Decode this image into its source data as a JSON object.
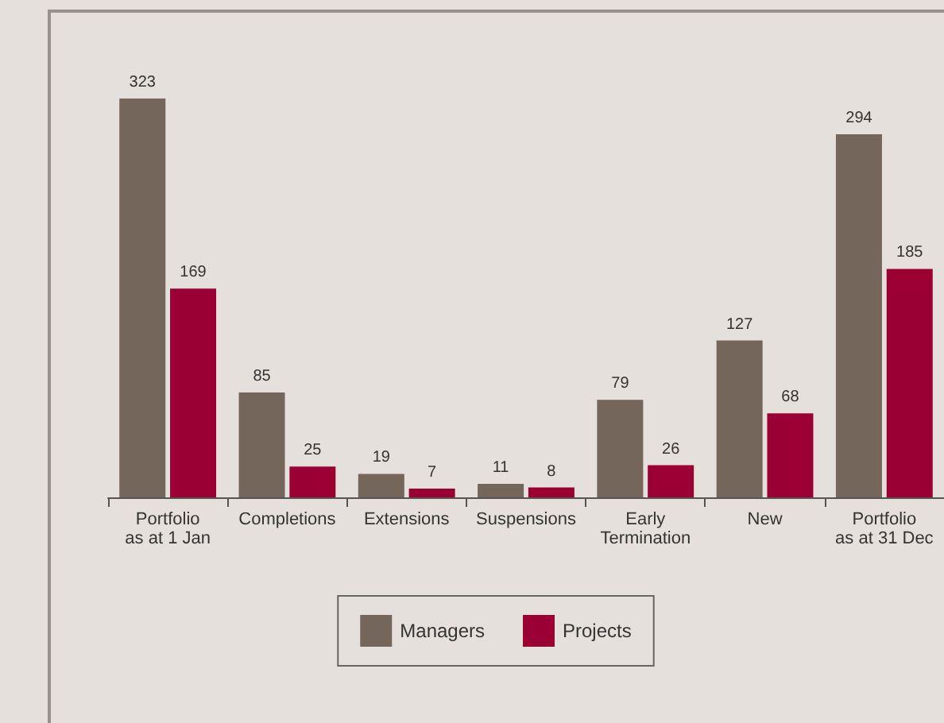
{
  "chart_data": {
    "type": "bar",
    "categories": [
      "Portfolio\nas at 1 Jan",
      "Completions",
      "Extensions",
      "Suspensions",
      "Early\nTermination",
      "New",
      "Portfolio\nas at 31 Dec"
    ],
    "series": [
      {
        "name": "Managers",
        "color": "#75665c",
        "values": [
          323,
          85,
          19,
          11,
          79,
          127,
          294
        ]
      },
      {
        "name": "Projects",
        "color": "#9b0034",
        "values": [
          169,
          25,
          7,
          8,
          26,
          68,
          185
        ]
      }
    ],
    "data_labels": true,
    "legend": "bottom",
    "grid": false
  }
}
